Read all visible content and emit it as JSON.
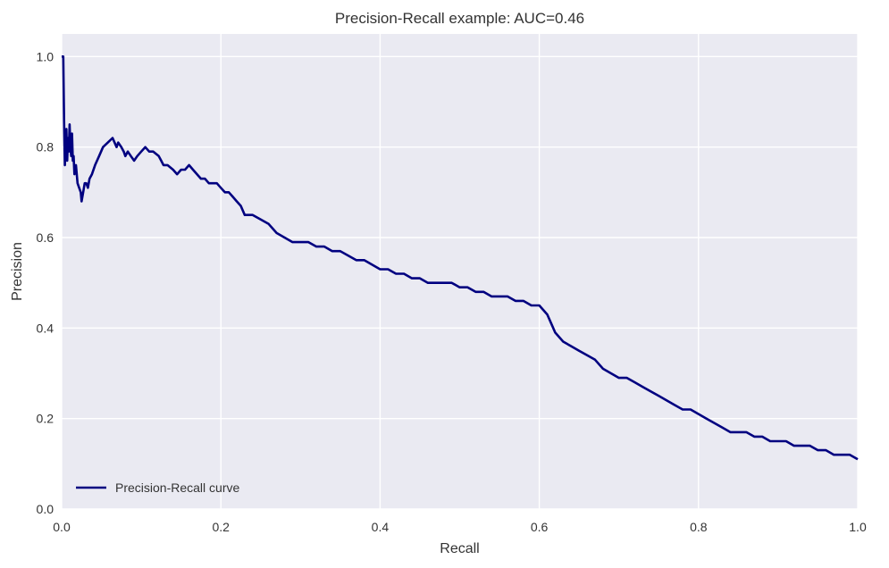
{
  "chart_data": {
    "type": "line",
    "title": "Precision-Recall example: AUC=0.46",
    "xlabel": "Recall",
    "ylabel": "Precision",
    "xlim": [
      0.0,
      1.0
    ],
    "ylim": [
      0.0,
      1.05
    ],
    "xticks": [
      "0.0",
      "0.2",
      "0.4",
      "0.6",
      "0.8",
      "1.0"
    ],
    "yticks": [
      "0.0",
      "0.2",
      "0.4",
      "0.6",
      "0.8",
      "1.0"
    ],
    "grid": true,
    "legend_position": "lower-left",
    "background_color": "#EAEAF2",
    "grid_color": "#FFFFFF",
    "series": [
      {
        "name": "Precision-Recall curve",
        "color": "#000080",
        "x": [
          0.0,
          0.0,
          0.002,
          0.003,
          0.004,
          0.005,
          0.006,
          0.007,
          0.008,
          0.009,
          0.01,
          0.011,
          0.012,
          0.013,
          0.014,
          0.015,
          0.016,
          0.018,
          0.02,
          0.022,
          0.024,
          0.025,
          0.027,
          0.029,
          0.031,
          0.033,
          0.035,
          0.038,
          0.042,
          0.047,
          0.052,
          0.058,
          0.064,
          0.069,
          0.071,
          0.075,
          0.078,
          0.08,
          0.083,
          0.087,
          0.091,
          0.095,
          0.1,
          0.105,
          0.11,
          0.115,
          0.122,
          0.125,
          0.128,
          0.133,
          0.14,
          0.145,
          0.15,
          0.155,
          0.16,
          0.165,
          0.17,
          0.175,
          0.18,
          0.185,
          0.19,
          0.195,
          0.2,
          0.205,
          0.21,
          0.215,
          0.22,
          0.225,
          0.23,
          0.24,
          0.25,
          0.26,
          0.27,
          0.28,
          0.29,
          0.3,
          0.31,
          0.32,
          0.33,
          0.34,
          0.35,
          0.36,
          0.37,
          0.38,
          0.39,
          0.4,
          0.41,
          0.42,
          0.43,
          0.44,
          0.45,
          0.46,
          0.47,
          0.48,
          0.49,
          0.5,
          0.51,
          0.52,
          0.53,
          0.54,
          0.55,
          0.56,
          0.57,
          0.58,
          0.59,
          0.6,
          0.605,
          0.61,
          0.615,
          0.62,
          0.625,
          0.63,
          0.64,
          0.65,
          0.66,
          0.67,
          0.68,
          0.69,
          0.7,
          0.71,
          0.72,
          0.73,
          0.74,
          0.75,
          0.76,
          0.77,
          0.78,
          0.79,
          0.8,
          0.81,
          0.82,
          0.83,
          0.84,
          0.85,
          0.86,
          0.87,
          0.88,
          0.89,
          0.9,
          0.91,
          0.92,
          0.93,
          0.94,
          0.95,
          0.96,
          0.97,
          0.98,
          0.99,
          1.0
        ],
        "y": [
          1.0,
          1.0,
          1.0,
          0.86,
          0.76,
          0.8,
          0.84,
          0.77,
          0.82,
          0.79,
          0.85,
          0.8,
          0.78,
          0.83,
          0.77,
          0.78,
          0.74,
          0.76,
          0.72,
          0.71,
          0.7,
          0.68,
          0.7,
          0.72,
          0.72,
          0.71,
          0.73,
          0.74,
          0.76,
          0.78,
          0.8,
          0.81,
          0.82,
          0.8,
          0.81,
          0.8,
          0.79,
          0.78,
          0.79,
          0.78,
          0.77,
          0.78,
          0.79,
          0.8,
          0.79,
          0.79,
          0.78,
          0.77,
          0.76,
          0.76,
          0.75,
          0.74,
          0.75,
          0.75,
          0.76,
          0.75,
          0.74,
          0.73,
          0.73,
          0.72,
          0.72,
          0.72,
          0.71,
          0.7,
          0.7,
          0.69,
          0.68,
          0.67,
          0.65,
          0.65,
          0.64,
          0.63,
          0.61,
          0.6,
          0.59,
          0.59,
          0.59,
          0.58,
          0.58,
          0.57,
          0.57,
          0.56,
          0.55,
          0.55,
          0.54,
          0.53,
          0.53,
          0.52,
          0.52,
          0.51,
          0.51,
          0.5,
          0.5,
          0.5,
          0.5,
          0.49,
          0.49,
          0.48,
          0.48,
          0.47,
          0.47,
          0.47,
          0.46,
          0.46,
          0.45,
          0.45,
          0.44,
          0.43,
          0.41,
          0.39,
          0.38,
          0.37,
          0.36,
          0.35,
          0.34,
          0.33,
          0.31,
          0.3,
          0.29,
          0.29,
          0.28,
          0.27,
          0.26,
          0.25,
          0.24,
          0.23,
          0.22,
          0.22,
          0.21,
          0.2,
          0.19,
          0.18,
          0.17,
          0.17,
          0.17,
          0.16,
          0.16,
          0.15,
          0.15,
          0.15,
          0.14,
          0.14,
          0.14,
          0.13,
          0.13,
          0.12,
          0.12,
          0.12,
          0.11
        ]
      }
    ]
  }
}
